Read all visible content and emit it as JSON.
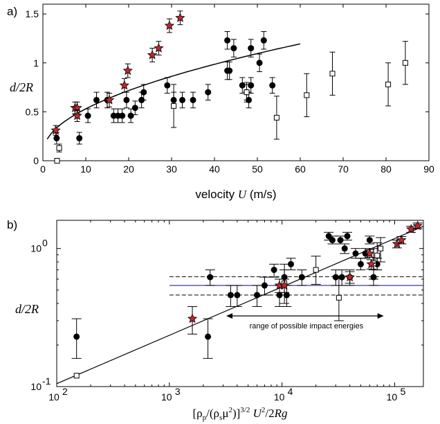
{
  "chart_data": [
    {
      "type": "scatter",
      "panel_label": "a)",
      "xlabel_prefix": "velocity ",
      "xlabel_var": "U",
      "xlabel_unit": " (m/s)",
      "ylabel": "d/2R",
      "xlim": [
        0,
        90
      ],
      "ylim": [
        0,
        1.6
      ],
      "xticks": [
        "0",
        "10",
        "20",
        "30",
        "40",
        "50",
        "60",
        "70",
        "80",
        "90"
      ],
      "yticks": [
        "0",
        "0.5",
        "1",
        "1.5"
      ],
      "xtick_values": [
        0,
        10,
        20,
        30,
        40,
        50,
        60,
        70,
        80,
        90
      ],
      "ytick_values": [
        0,
        0.5,
        1,
        1.5
      ],
      "grid": false,
      "series": [
        {
          "marker": "filled-circle",
          "points": [
            {
              "x": 3.2,
              "y": 0.23,
              "err": 0.06
            },
            {
              "x": 8.5,
              "y": 0.23,
              "err": 0.06
            },
            {
              "x": 10.5,
              "y": 0.46,
              "err": 0.07
            },
            {
              "x": 12.5,
              "y": 0.62,
              "err": 0.08
            },
            {
              "x": 15.0,
              "y": 0.62,
              "err": 0.08
            },
            {
              "x": 16.5,
              "y": 0.46,
              "err": 0.07
            },
            {
              "x": 17.5,
              "y": 0.46,
              "err": 0.07
            },
            {
              "x": 18.5,
              "y": 0.46,
              "err": 0.07
            },
            {
              "x": 19.5,
              "y": 0.62,
              "err": 0.08
            },
            {
              "x": 20.5,
              "y": 0.46,
              "err": 0.07
            },
            {
              "x": 21.5,
              "y": 0.54,
              "err": 0.07
            },
            {
              "x": 23.0,
              "y": 0.62,
              "err": 0.08
            },
            {
              "x": 23.5,
              "y": 0.7,
              "err": 0.08
            },
            {
              "x": 29.0,
              "y": 0.77,
              "err": 0.08
            },
            {
              "x": 30.5,
              "y": 0.62,
              "err": 0.08
            },
            {
              "x": 32.5,
              "y": 0.62,
              "err": 0.08
            },
            {
              "x": 35.0,
              "y": 0.62,
              "err": 0.08
            },
            {
              "x": 38.5,
              "y": 0.7,
              "err": 0.08
            },
            {
              "x": 43.0,
              "y": 0.92,
              "err": 0.09
            },
            {
              "x": 43.5,
              "y": 0.92,
              "err": 0.09
            },
            {
              "x": 43.0,
              "y": 1.23,
              "err": 0.09
            },
            {
              "x": 44.5,
              "y": 1.15,
              "err": 0.09
            },
            {
              "x": 46.5,
              "y": 0.77,
              "err": 0.08
            },
            {
              "x": 47.5,
              "y": 0.7,
              "err": 0.08
            },
            {
              "x": 48.0,
              "y": 0.62,
              "err": 0.08
            },
            {
              "x": 48.5,
              "y": 0.77,
              "err": 0.08
            },
            {
              "x": 48.5,
              "y": 1.15,
              "err": 0.09
            },
            {
              "x": 50.5,
              "y": 1.0,
              "err": 0.09
            },
            {
              "x": 51.5,
              "y": 1.23,
              "err": 0.09
            },
            {
              "x": 53.5,
              "y": 0.77,
              "err": 0.08
            }
          ]
        },
        {
          "marker": "open-square",
          "points": [
            {
              "x": 3.3,
              "y": 0.0,
              "err": 0
            },
            {
              "x": 3.8,
              "y": 0.13,
              "err": 0.04
            },
            {
              "x": 30.5,
              "y": 0.56,
              "err": 0.22
            },
            {
              "x": 47.5,
              "y": 0.7,
              "err": 0.1
            },
            {
              "x": 54.5,
              "y": 0.44,
              "err": 0.22
            },
            {
              "x": 61.5,
              "y": 0.67,
              "err": 0.22
            },
            {
              "x": 67.5,
              "y": 0.89,
              "err": 0.22
            },
            {
              "x": 80.5,
              "y": 0.78,
              "err": 0.22
            },
            {
              "x": 84.5,
              "y": 1.0,
              "err": 0.22
            }
          ]
        },
        {
          "marker": "red-star",
          "points": [
            {
              "x": 3.0,
              "y": 0.31,
              "err": 0.05
            },
            {
              "x": 7.5,
              "y": 0.54,
              "err": 0.06
            },
            {
              "x": 8.0,
              "y": 0.54,
              "err": 0.06
            },
            {
              "x": 8.0,
              "y": 0.46,
              "err": 0.06
            },
            {
              "x": 15.5,
              "y": 0.62,
              "err": 0.07
            },
            {
              "x": 19.0,
              "y": 0.77,
              "err": 0.07
            },
            {
              "x": 19.8,
              "y": 0.92,
              "err": 0.07
            },
            {
              "x": 25.5,
              "y": 1.08,
              "err": 0.07
            },
            {
              "x": 27.0,
              "y": 1.15,
              "err": 0.07
            },
            {
              "x": 29.5,
              "y": 1.38,
              "err": 0.07
            },
            {
              "x": 32.0,
              "y": 1.46,
              "err": 0.07
            }
          ]
        }
      ],
      "fit_curve": {
        "start_x": 1,
        "end_x": 60
      }
    },
    {
      "type": "scatter",
      "panel_label": "b)",
      "xlabel": "[ρp/(ρsμ2)]3/2 U2/2Rg",
      "ylabel": "d/2R",
      "xscale": "log",
      "yscale": "log",
      "xlim": [
        100,
        180000
      ],
      "ylim": [
        0.1,
        1.6
      ],
      "xticks": [
        "10",
        "10",
        "10",
        "10"
      ],
      "xtick_exps": [
        "2",
        "3",
        "4",
        "5"
      ],
      "xtick_values": [
        100,
        1000,
        10000,
        100000
      ],
      "yticks": [
        "10",
        "10"
      ],
      "ytick_exps": [
        "-1",
        "0"
      ],
      "ytick_values": [
        0.1,
        1
      ],
      "grid": false,
      "annotation": "range of possible impact energies",
      "annotation_range": [
        3200,
        80000
      ],
      "annotation_y": 0.325,
      "reference_lines": {
        "solid": 0.54,
        "dashed_upper": 0.625,
        "dashed_lower": 0.46,
        "x_range": [
          1000,
          180000
        ]
      },
      "series": [
        {
          "marker": "filled-circle",
          "points": [
            {
              "x": 150,
              "y": 0.23,
              "lo": 0.16,
              "hi": 0.31
            },
            {
              "x": 2200,
              "y": 0.23,
              "lo": 0.16,
              "hi": 0.31
            },
            {
              "x": 2300,
              "y": 0.62,
              "lo": 0.54,
              "hi": 0.7
            },
            {
              "x": 3500,
              "y": 0.46,
              "lo": 0.38,
              "hi": 0.54
            },
            {
              "x": 4000,
              "y": 0.46,
              "lo": 0.38,
              "hi": 0.54
            },
            {
              "x": 6000,
              "y": 0.46,
              "lo": 0.38,
              "hi": 0.54
            },
            {
              "x": 7000,
              "y": 0.54,
              "lo": 0.46,
              "hi": 0.62
            },
            {
              "x": 8500,
              "y": 0.7,
              "lo": 0.62,
              "hi": 0.77
            },
            {
              "x": 9500,
              "y": 0.46,
              "lo": 0.38,
              "hi": 0.54
            },
            {
              "x": 10500,
              "y": 0.62,
              "lo": 0.54,
              "hi": 0.7
            },
            {
              "x": 11000,
              "y": 0.46,
              "lo": 0.38,
              "hi": 0.54
            },
            {
              "x": 12000,
              "y": 0.77,
              "lo": 0.7,
              "hi": 0.85
            },
            {
              "x": 15000,
              "y": 0.62,
              "lo": 0.54,
              "hi": 0.7
            },
            {
              "x": 26000,
              "y": 1.23,
              "lo": 1.15,
              "hi": 1.31
            },
            {
              "x": 28000,
              "y": 1.15,
              "lo": 1.08,
              "hi": 1.23
            },
            {
              "x": 30000,
              "y": 0.62,
              "lo": 0.54,
              "hi": 0.7
            },
            {
              "x": 33000,
              "y": 1.15,
              "lo": 1.08,
              "hi": 1.23
            },
            {
              "x": 34000,
              "y": 0.62,
              "lo": 0.54,
              "hi": 0.7
            },
            {
              "x": 36000,
              "y": 1.0,
              "lo": 0.92,
              "hi": 1.08
            },
            {
              "x": 38000,
              "y": 1.23,
              "lo": 1.15,
              "hi": 1.31
            },
            {
              "x": 40000,
              "y": 0.62,
              "lo": 0.54,
              "hi": 0.7
            },
            {
              "x": 45000,
              "y": 0.92,
              "lo": 0.85,
              "hi": 1.0
            },
            {
              "x": 50000,
              "y": 0.77,
              "lo": 0.7,
              "hi": 0.85
            },
            {
              "x": 55000,
              "y": 0.92,
              "lo": 0.85,
              "hi": 1.0
            },
            {
              "x": 60000,
              "y": 1.15,
              "lo": 1.08,
              "hi": 1.23
            },
            {
              "x": 65000,
              "y": 0.62,
              "lo": 0.54,
              "hi": 0.7
            },
            {
              "x": 70000,
              "y": 0.77,
              "lo": 0.7,
              "hi": 0.85
            }
          ]
        },
        {
          "marker": "open-square",
          "points": [
            {
              "x": 150,
              "y": 0.12,
              "lo": 0.12,
              "hi": 0.12
            },
            {
              "x": 10500,
              "y": 0.56,
              "lo": 0.4,
              "hi": 0.77
            },
            {
              "x": 20000,
              "y": 0.7,
              "lo": 0.55,
              "hi": 0.88
            },
            {
              "x": 32000,
              "y": 0.44,
              "lo": 0.3,
              "hi": 0.62
            },
            {
              "x": 65000,
              "y": 0.78,
              "lo": 0.6,
              "hi": 1.0
            },
            {
              "x": 70000,
              "y": 0.89,
              "lo": 0.7,
              "hi": 1.1
            },
            {
              "x": 75000,
              "y": 1.0,
              "lo": 0.8,
              "hi": 1.2
            }
          ]
        },
        {
          "marker": "red-star",
          "points": [
            {
              "x": 1600,
              "y": 0.31,
              "lo": 0.24,
              "hi": 0.38
            },
            {
              "x": 9500,
              "y": 0.54,
              "lo": 0.48,
              "hi": 0.6
            },
            {
              "x": 10500,
              "y": 0.54,
              "lo": 0.48,
              "hi": 0.6
            },
            {
              "x": 40000,
              "y": 0.62,
              "lo": 0.56,
              "hi": 0.68
            },
            {
              "x": 60000,
              "y": 0.92,
              "lo": 0.86,
              "hi": 0.98
            },
            {
              "x": 62000,
              "y": 0.77,
              "lo": 0.71,
              "hi": 0.83
            },
            {
              "x": 105000,
              "y": 1.08,
              "lo": 1.01,
              "hi": 1.15
            },
            {
              "x": 115000,
              "y": 1.15,
              "lo": 1.08,
              "hi": 1.22
            },
            {
              "x": 140000,
              "y": 1.38,
              "lo": 1.31,
              "hi": 1.45
            },
            {
              "x": 160000,
              "y": 1.46,
              "lo": 1.39,
              "hi": 1.53
            }
          ]
        }
      ],
      "fit_line": {
        "x": [
          100,
          180000
        ],
        "y": [
          0.105,
          1.45
        ]
      }
    }
  ]
}
